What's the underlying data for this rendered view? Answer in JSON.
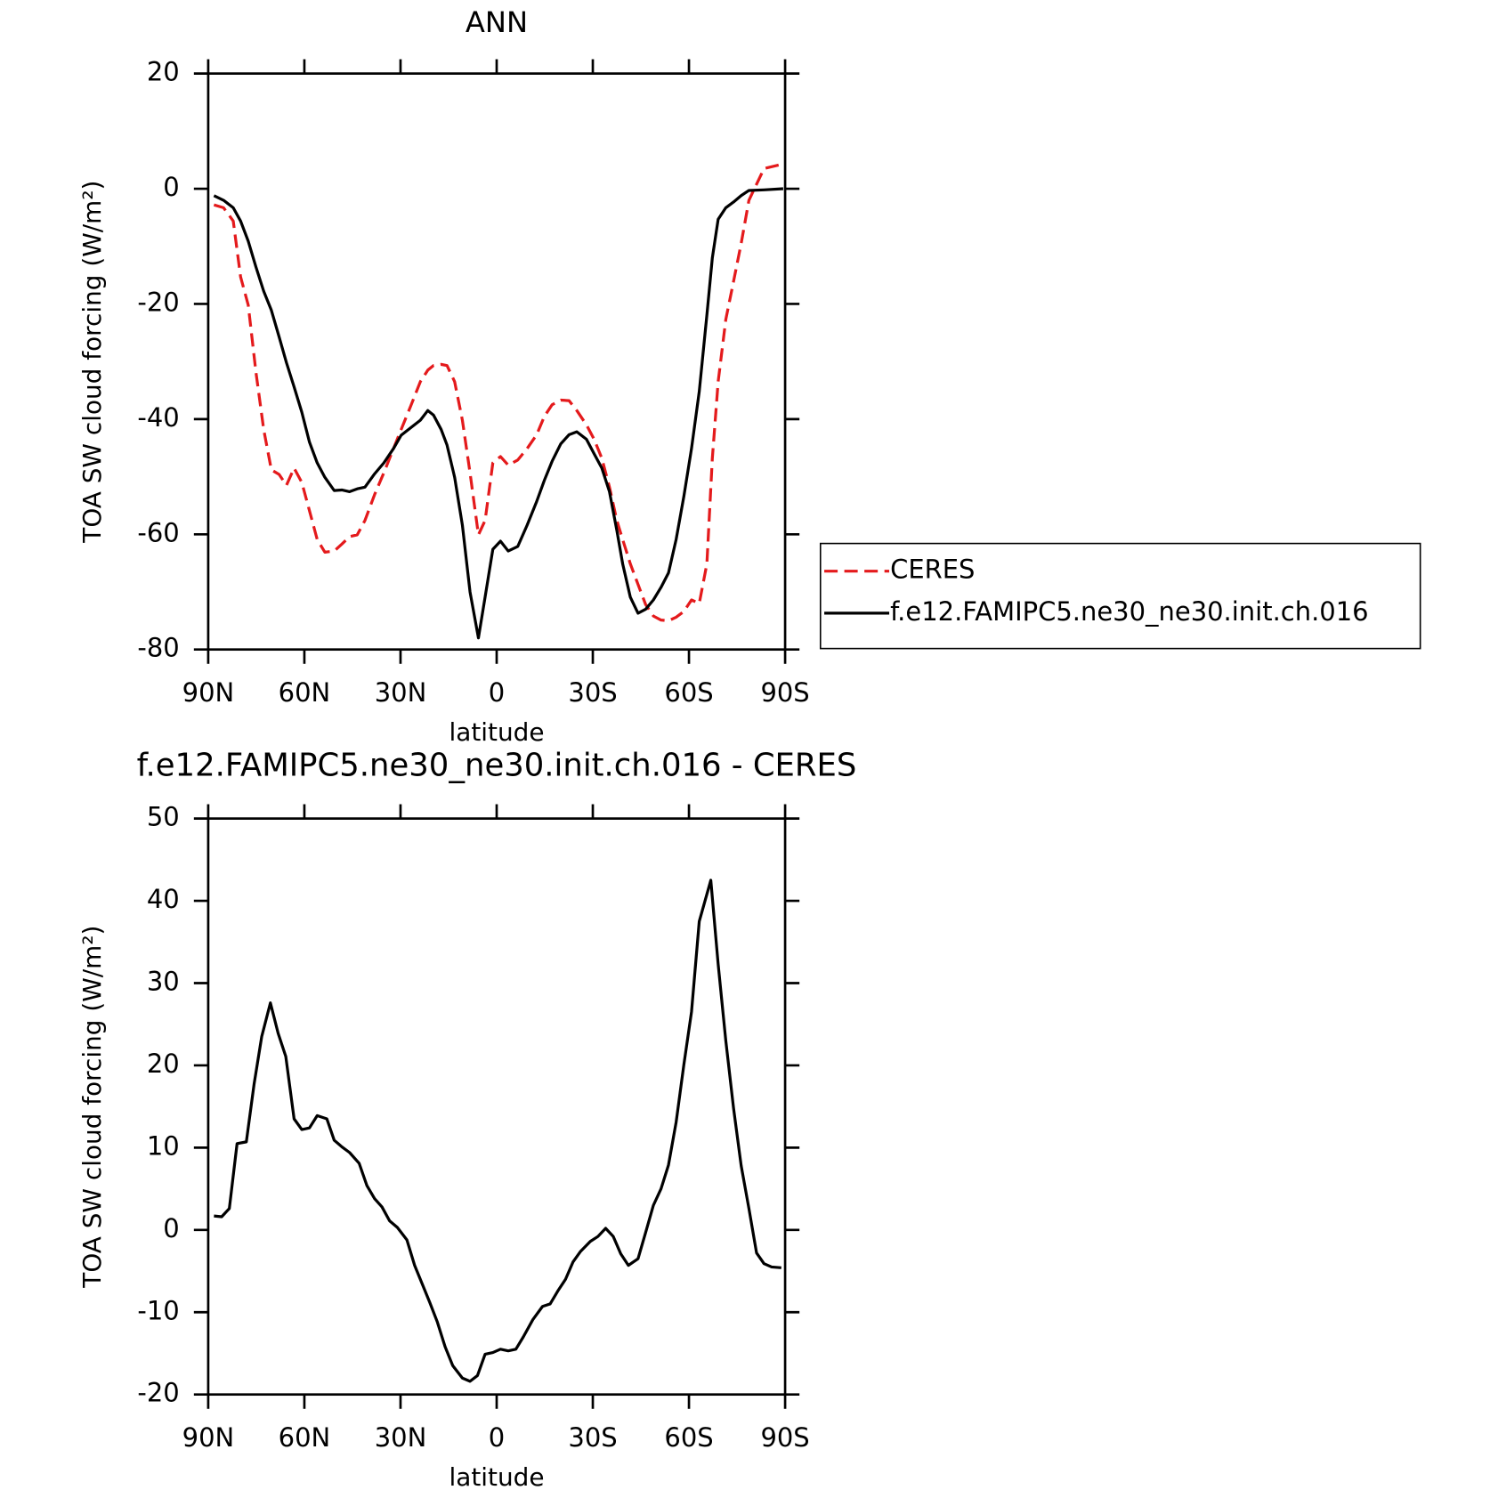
{
  "chart_data": [
    {
      "type": "line",
      "title": "ANN",
      "xlabel": "latitude",
      "ylabel": "TOA SW cloud forcing (W/m²)",
      "x": [
        88.2,
        85.2,
        82.2,
        79.9,
        77.5,
        75.1,
        72.7,
        70.3,
        67.9,
        65.6,
        63.2,
        60.8,
        58.4,
        56.0,
        53.6,
        50.7,
        48.3,
        45.9,
        43.5,
        41.1,
        38.1,
        35.2,
        32.2,
        29.8,
        26.8,
        23.8,
        21.5,
        19.7,
        17.3,
        15.5,
        13.1,
        10.7,
        8.3,
        5.7,
        3.6,
        1.2,
        -1.2,
        -3.6,
        -6.6,
        -9.5,
        -12.5,
        -14.9,
        -17.3,
        -20.0,
        -22.6,
        -25.0,
        -28.0,
        -30.4,
        -32.8,
        -35.2,
        -37.5,
        -39.3,
        -41.7,
        -44.1,
        -46.5,
        -48.9,
        -51.3,
        -53.6,
        -56.0,
        -58.4,
        -60.8,
        -63.2,
        -65.6,
        -67.3,
        -69.1,
        -71.5,
        -73.9,
        -76.3,
        -78.7,
        -83.4,
        -89.4
      ],
      "series": [
        {
          "name": "CERES",
          "color": "#e41a1c",
          "style": "dashed",
          "values": [
            -2.8,
            -3.3,
            -5.6,
            -15.3,
            -20.2,
            -31.9,
            -41.8,
            -48.8,
            -49.6,
            -51.5,
            -48.5,
            -51.0,
            -55.9,
            -60.9,
            -63.1,
            -62.9,
            -61.7,
            -60.4,
            -60.1,
            -57.6,
            -53.1,
            -49.3,
            -45.1,
            -41.8,
            -37.7,
            -33.5,
            -31.5,
            -30.7,
            -30.5,
            -30.7,
            -33.5,
            -40.2,
            -49.3,
            -60.1,
            -57.6,
            -47.6,
            -46.5,
            -48.0,
            -47.1,
            -45.1,
            -42.7,
            -39.5,
            -37.5,
            -36.7,
            -36.8,
            -38.5,
            -41.0,
            -43.5,
            -46.8,
            -51.8,
            -57.6,
            -60.9,
            -65.1,
            -68.7,
            -72.2,
            -74.2,
            -74.9,
            -75.0,
            -74.4,
            -73.4,
            -71.4,
            -72.0,
            -65.1,
            -46.8,
            -33.5,
            -22.7,
            -16.1,
            -9.5,
            -2.0,
            3.5,
            4.3
          ]
        },
        {
          "name": "f.e12.FAMIPC5.ne30_ne30.init.ch.016",
          "color": "#000000",
          "style": "solid",
          "values": [
            -1.2,
            -2.0,
            -3.3,
            -5.6,
            -9.1,
            -13.6,
            -17.8,
            -21.1,
            -25.7,
            -30.2,
            -34.4,
            -38.8,
            -44.0,
            -47.6,
            -50.1,
            -52.4,
            -52.3,
            -52.6,
            -52.1,
            -51.8,
            -49.5,
            -47.6,
            -45.1,
            -42.8,
            -41.5,
            -40.2,
            -38.5,
            -39.3,
            -41.8,
            -44.5,
            -50.1,
            -58.4,
            -70.0,
            -78.0,
            -70.9,
            -62.6,
            -61.2,
            -62.9,
            -62.1,
            -58.4,
            -54.3,
            -50.6,
            -47.3,
            -44.3,
            -42.7,
            -42.2,
            -43.5,
            -46.0,
            -48.5,
            -52.6,
            -59.3,
            -65.1,
            -70.9,
            -73.7,
            -73.0,
            -71.4,
            -69.2,
            -66.7,
            -60.9,
            -53.4,
            -45.1,
            -35.2,
            -21.9,
            -12.0,
            -5.3,
            -3.3,
            -2.3,
            -1.2,
            -0.3,
            -0.2,
            0
          ]
        }
      ],
      "xlim": [
        90,
        -90
      ],
      "xticks": [
        {
          "value": 90,
          "label": "90N"
        },
        {
          "value": 60,
          "label": "60N"
        },
        {
          "value": 30,
          "label": "30N"
        },
        0,
        {
          "value": -30,
          "label": "30S"
        },
        {
          "value": -60,
          "label": "60S"
        },
        {
          "value": -90,
          "label": "90S"
        }
      ],
      "ylim": [
        -80,
        20
      ],
      "yticks": [
        -80,
        -60,
        -40,
        -20,
        0,
        20
      ],
      "legend": "right"
    },
    {
      "type": "line",
      "title": "f.e12.FAMIPC5.ne30_ne30.init.ch.016 - CERES",
      "xlabel": "latitude",
      "ylabel": "TOA SW cloud forcing (W/m²)",
      "x": [
        88.2,
        85.8,
        83.4,
        81.0,
        78.1,
        75.7,
        73.3,
        70.6,
        68.2,
        65.8,
        63.2,
        60.8,
        58.4,
        56.0,
        53.0,
        50.7,
        48.3,
        45.9,
        42.9,
        40.5,
        38.1,
        35.8,
        33.4,
        31.0,
        28.0,
        25.6,
        23.2,
        20.9,
        18.5,
        16.1,
        13.7,
        10.7,
        8.3,
        6.0,
        3.6,
        1.2,
        -1.2,
        -3.6,
        -6.0,
        -8.3,
        -11.3,
        -14.3,
        -16.7,
        -19.1,
        -21.5,
        -23.8,
        -26.2,
        -29.2,
        -31.6,
        -34.0,
        -36.4,
        -38.7,
        -41.1,
        -44.1,
        -46.5,
        -48.9,
        -51.3,
        -53.6,
        -56.0,
        -58.4,
        -60.8,
        -63.2,
        -66.8,
        -69.1,
        -71.5,
        -73.9,
        -76.3,
        -78.7,
        -81.1,
        -83.4,
        -85.8,
        -88.8
      ],
      "values": [
        1.7,
        1.6,
        2.6,
        10.5,
        10.7,
        17.7,
        23.5,
        27.6,
        23.9,
        21.1,
        13.5,
        12.2,
        12.4,
        13.9,
        13.5,
        10.9,
        10.1,
        9.4,
        8.1,
        5.4,
        3.8,
        2.8,
        1.1,
        0.3,
        -1.2,
        -4.3,
        -6.6,
        -8.8,
        -11.2,
        -14.2,
        -16.5,
        -18.0,
        -18.4,
        -17.7,
        -15.1,
        -14.9,
        -14.5,
        -14.7,
        -14.5,
        -13.0,
        -10.9,
        -9.3,
        -9.0,
        -7.4,
        -6.0,
        -3.9,
        -2.6,
        -1.4,
        -0.8,
        0.2,
        -0.8,
        -2.9,
        -4.3,
        -3.5,
        -0.3,
        3.0,
        5.0,
        7.9,
        13.1,
        20.1,
        26.5,
        37.5,
        42.5,
        32.3,
        23.0,
        14.8,
        7.8,
        2.6,
        -2.8,
        -4.1,
        -4.5,
        -4.6
      ],
      "color": "#000000",
      "xlim": [
        90,
        -90
      ],
      "xticks": [
        {
          "value": 90,
          "label": "90N"
        },
        {
          "value": 60,
          "label": "60N"
        },
        {
          "value": 30,
          "label": "30N"
        },
        0,
        {
          "value": -30,
          "label": "30S"
        },
        {
          "value": -60,
          "label": "60S"
        },
        {
          "value": -90,
          "label": "90S"
        }
      ],
      "ylim": [
        -20,
        50
      ],
      "yticks": [
        -20,
        -10,
        0,
        10,
        20,
        30,
        40,
        50
      ]
    }
  ]
}
